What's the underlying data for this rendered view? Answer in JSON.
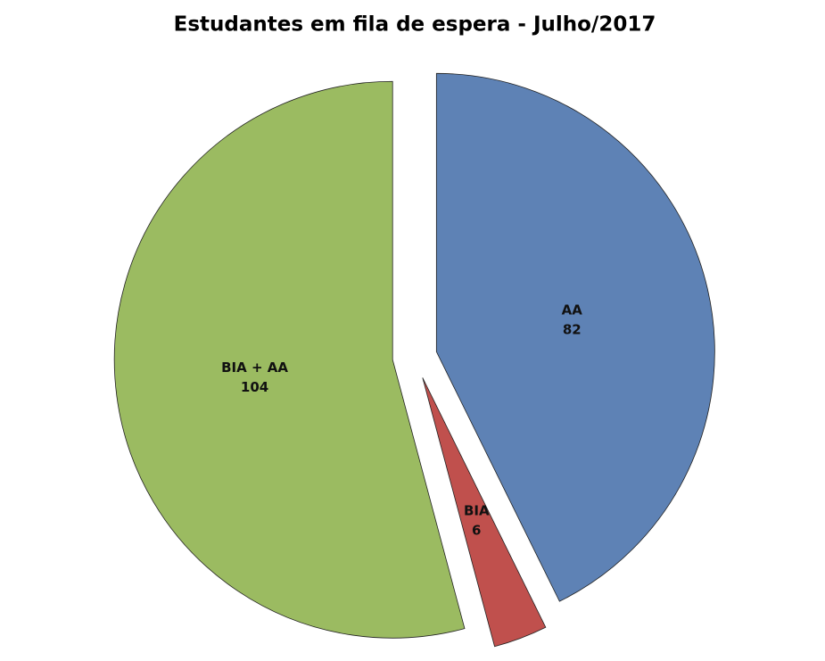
{
  "chart_data": {
    "type": "pie",
    "title": "Estudantes em fila de espera - Julho/2017",
    "categories": [
      "AA",
      "BIA",
      "BIA + AA"
    ],
    "values": [
      82,
      6,
      104
    ],
    "colors": [
      "#5e82b5",
      "#c0504d",
      "#9bbb61"
    ]
  }
}
